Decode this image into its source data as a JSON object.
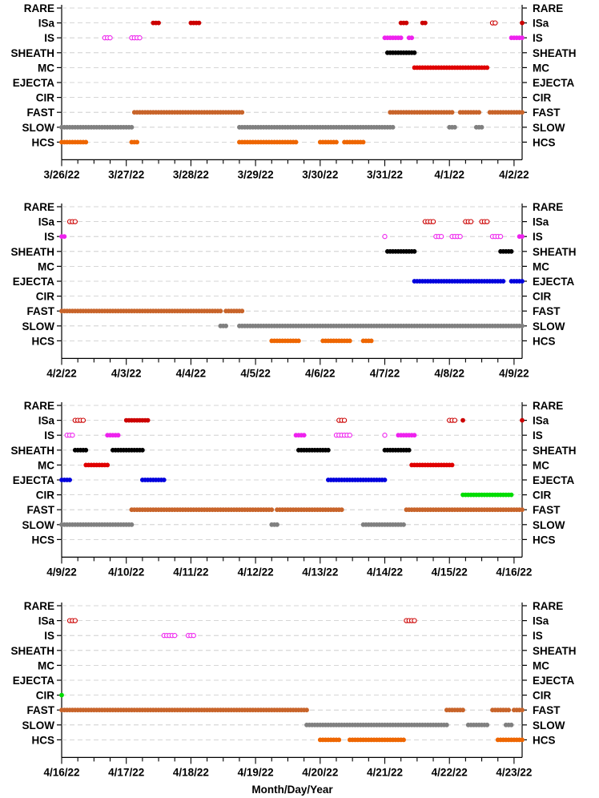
{
  "chart_data": {
    "type": "scatter",
    "x_axis_label": "Month/Day/Year",
    "categories": [
      "RARE",
      "ISa",
      "IS",
      "SHEATH",
      "MC",
      "EJECTA",
      "CIR",
      "FAST",
      "SLOW",
      "HCS"
    ],
    "colors": {
      "RARE": "#000000",
      "ISa": "#cc0000",
      "IS": "#ee22ee",
      "SHEATH": "#000000",
      "MC": "#e00000",
      "EJECTA": "#0000dd",
      "CIR": "#00dd00",
      "FAST": "#c8642a",
      "SLOW": "#808080",
      "HCS": "#ee6600"
    },
    "grid": "dashed horizontal",
    "panels": [
      {
        "x_range": [
          "2022-03-26",
          "2022-04-02 03:00"
        ],
        "tick_labels": [
          "3/26/22",
          "3/27/22",
          "3/28/22",
          "3/29/22",
          "3/30/22",
          "3/31/22",
          "4/1/22",
          "4/2/22"
        ],
        "intervals": [
          {
            "category": "ISa",
            "start": "2022-03-27 10:00",
            "end": "2022-03-27 12:00",
            "filled": true
          },
          {
            "category": "ISa",
            "start": "2022-03-28 00:00",
            "end": "2022-03-28 03:00",
            "filled": true
          },
          {
            "category": "ISa",
            "start": "2022-03-31 06:00",
            "end": "2022-03-31 08:00",
            "filled": true
          },
          {
            "category": "ISa",
            "start": "2022-03-31 14:00",
            "end": "2022-03-31 15:00",
            "filled": true
          },
          {
            "category": "ISa",
            "start": "2022-04-01 16:00",
            "end": "2022-04-01 17:00",
            "filled": false
          },
          {
            "category": "ISa",
            "start": "2022-04-02 03:00",
            "end": "2022-04-02 03:00",
            "filled": true
          },
          {
            "category": "IS",
            "start": "2022-03-26 16:00",
            "end": "2022-03-26 18:00",
            "filled": false
          },
          {
            "category": "IS",
            "start": "2022-03-27 02:00",
            "end": "2022-03-27 05:00",
            "filled": false
          },
          {
            "category": "IS",
            "start": "2022-03-31 00:00",
            "end": "2022-03-31 06:00",
            "filled": true
          },
          {
            "category": "IS",
            "start": "2022-03-31 09:00",
            "end": "2022-03-31 10:00",
            "filled": true
          },
          {
            "category": "IS",
            "start": "2022-04-01 23:00",
            "end": "2022-04-02 03:00",
            "filled": true
          },
          {
            "category": "SHEATH",
            "start": "2022-03-31 01:00",
            "end": "2022-03-31 11:00",
            "filled": true
          },
          {
            "category": "MC",
            "start": "2022-03-31 11:00",
            "end": "2022-04-01 14:00",
            "filled": true
          },
          {
            "category": "FAST",
            "start": "2022-03-27 03:00",
            "end": "2022-03-28 19:00",
            "filled": true
          },
          {
            "category": "FAST",
            "start": "2022-03-31 02:00",
            "end": "2022-04-01 01:00",
            "filled": true
          },
          {
            "category": "FAST",
            "start": "2022-04-01 04:00",
            "end": "2022-04-01 11:00",
            "filled": true
          },
          {
            "category": "FAST",
            "start": "2022-04-01 15:00",
            "end": "2022-04-02 03:00",
            "filled": true
          },
          {
            "category": "SLOW",
            "start": "2022-03-26 00:00",
            "end": "2022-03-27 02:00",
            "filled": true
          },
          {
            "category": "SLOW",
            "start": "2022-03-28 18:00",
            "end": "2022-03-31 03:00",
            "filled": true
          },
          {
            "category": "SLOW",
            "start": "2022-04-01 00:00",
            "end": "2022-04-01 02:00",
            "filled": true
          },
          {
            "category": "SLOW",
            "start": "2022-04-01 10:00",
            "end": "2022-04-01 12:00",
            "filled": true
          },
          {
            "category": "HCS",
            "start": "2022-03-26 00:00",
            "end": "2022-03-26 09:00",
            "filled": true
          },
          {
            "category": "HCS",
            "start": "2022-03-27 02:00",
            "end": "2022-03-27 04:00",
            "filled": true
          },
          {
            "category": "HCS",
            "start": "2022-03-28 18:00",
            "end": "2022-03-29 15:00",
            "filled": true
          },
          {
            "category": "HCS",
            "start": "2022-03-30 00:00",
            "end": "2022-03-30 06:00",
            "filled": true
          },
          {
            "category": "HCS",
            "start": "2022-03-30 09:00",
            "end": "2022-03-30 16:00",
            "filled": true
          }
        ]
      },
      {
        "x_range": [
          "2022-04-02",
          "2022-04-09 03:00"
        ],
        "tick_labels": [
          "4/2/22",
          "4/3/22",
          "4/4/22",
          "4/5/22",
          "4/6/22",
          "4/7/22",
          "4/8/22",
          "4/9/22"
        ],
        "intervals": [
          {
            "category": "ISa",
            "start": "2022-04-02 03:00",
            "end": "2022-04-02 05:00",
            "filled": false
          },
          {
            "category": "ISa",
            "start": "2022-04-07 15:00",
            "end": "2022-04-07 18:00",
            "filled": false
          },
          {
            "category": "ISa",
            "start": "2022-04-08 06:00",
            "end": "2022-04-08 08:00",
            "filled": false
          },
          {
            "category": "ISa",
            "start": "2022-04-08 12:00",
            "end": "2022-04-08 14:00",
            "filled": false
          },
          {
            "category": "IS",
            "start": "2022-04-02 00:00",
            "end": "2022-04-02 01:00",
            "filled": true
          },
          {
            "category": "IS",
            "start": "2022-04-07 00:00",
            "end": "2022-04-07 00:00",
            "filled": false
          },
          {
            "category": "IS",
            "start": "2022-04-07 19:00",
            "end": "2022-04-07 21:00",
            "filled": false
          },
          {
            "category": "IS",
            "start": "2022-04-08 01:00",
            "end": "2022-04-08 04:00",
            "filled": false
          },
          {
            "category": "IS",
            "start": "2022-04-08 16:00",
            "end": "2022-04-08 19:00",
            "filled": false
          },
          {
            "category": "IS",
            "start": "2022-04-09 02:00",
            "end": "2022-04-09 03:00",
            "filled": true
          },
          {
            "category": "SHEATH",
            "start": "2022-04-07 01:00",
            "end": "2022-04-07 11:00",
            "filled": true
          },
          {
            "category": "SHEATH",
            "start": "2022-04-08 19:00",
            "end": "2022-04-08 23:00",
            "filled": true
          },
          {
            "category": "EJECTA",
            "start": "2022-04-07 11:00",
            "end": "2022-04-08 20:00",
            "filled": true
          },
          {
            "category": "EJECTA",
            "start": "2022-04-08 23:00",
            "end": "2022-04-09 03:00",
            "filled": true
          },
          {
            "category": "FAST",
            "start": "2022-04-02 00:00",
            "end": "2022-04-04 11:00",
            "filled": true
          },
          {
            "category": "FAST",
            "start": "2022-04-04 13:00",
            "end": "2022-04-04 19:00",
            "filled": true
          },
          {
            "category": "SLOW",
            "start": "2022-04-04 11:00",
            "end": "2022-04-04 13:00",
            "filled": true
          },
          {
            "category": "SLOW",
            "start": "2022-04-04 18:00",
            "end": "2022-04-09 03:00",
            "filled": true
          },
          {
            "category": "HCS",
            "start": "2022-04-05 06:00",
            "end": "2022-04-05 16:00",
            "filled": true
          },
          {
            "category": "HCS",
            "start": "2022-04-06 01:00",
            "end": "2022-04-06 11:00",
            "filled": true
          },
          {
            "category": "HCS",
            "start": "2022-04-06 16:00",
            "end": "2022-04-06 19:00",
            "filled": true
          }
        ]
      },
      {
        "x_range": [
          "2022-04-09",
          "2022-04-16 03:00"
        ],
        "tick_labels": [
          "4/9/22",
          "4/10/22",
          "4/11/22",
          "4/12/22",
          "4/13/22",
          "4/14/22",
          "4/15/22",
          "4/16/22"
        ],
        "intervals": [
          {
            "category": "ISa",
            "start": "2022-04-09 05:00",
            "end": "2022-04-09 08:00",
            "filled": false
          },
          {
            "category": "ISa",
            "start": "2022-04-10 00:00",
            "end": "2022-04-10 08:00",
            "filled": true
          },
          {
            "category": "ISa",
            "start": "2022-04-13 07:00",
            "end": "2022-04-13 09:00",
            "filled": false
          },
          {
            "category": "ISa",
            "start": "2022-04-15 00:00",
            "end": "2022-04-15 02:00",
            "filled": false
          },
          {
            "category": "ISa",
            "start": "2022-04-15 05:00",
            "end": "2022-04-15 05:00",
            "filled": true
          },
          {
            "category": "ISa",
            "start": "2022-04-16 03:00",
            "end": "2022-04-16 03:00",
            "filled": true
          },
          {
            "category": "IS",
            "start": "2022-04-09 02:00",
            "end": "2022-04-09 04:00",
            "filled": false
          },
          {
            "category": "IS",
            "start": "2022-04-09 17:00",
            "end": "2022-04-09 21:00",
            "filled": true
          },
          {
            "category": "IS",
            "start": "2022-04-12 15:00",
            "end": "2022-04-12 18:00",
            "filled": true
          },
          {
            "category": "IS",
            "start": "2022-04-13 06:00",
            "end": "2022-04-13 11:00",
            "filled": false
          },
          {
            "category": "IS",
            "start": "2022-04-14 00:00",
            "end": "2022-04-14 00:00",
            "filled": false
          },
          {
            "category": "IS",
            "start": "2022-04-14 05:00",
            "end": "2022-04-14 11:00",
            "filled": true
          },
          {
            "category": "SHEATH",
            "start": "2022-04-09 05:00",
            "end": "2022-04-09 09:00",
            "filled": true
          },
          {
            "category": "SHEATH",
            "start": "2022-04-09 19:00",
            "end": "2022-04-10 06:00",
            "filled": true
          },
          {
            "category": "SHEATH",
            "start": "2022-04-12 16:00",
            "end": "2022-04-13 03:00",
            "filled": true
          },
          {
            "category": "SHEATH",
            "start": "2022-04-14 00:00",
            "end": "2022-04-14 09:00",
            "filled": true
          },
          {
            "category": "MC",
            "start": "2022-04-09 09:00",
            "end": "2022-04-09 17:00",
            "filled": true
          },
          {
            "category": "MC",
            "start": "2022-04-14 10:00",
            "end": "2022-04-15 01:00",
            "filled": true
          },
          {
            "category": "EJECTA",
            "start": "2022-04-09 00:00",
            "end": "2022-04-09 03:00",
            "filled": true
          },
          {
            "category": "EJECTA",
            "start": "2022-04-10 06:00",
            "end": "2022-04-10 14:00",
            "filled": true
          },
          {
            "category": "EJECTA",
            "start": "2022-04-13 03:00",
            "end": "2022-04-14 00:00",
            "filled": true
          },
          {
            "category": "CIR",
            "start": "2022-04-15 05:00",
            "end": "2022-04-15 23:00",
            "filled": true
          },
          {
            "category": "FAST",
            "start": "2022-04-10 02:00",
            "end": "2022-04-12 06:00",
            "filled": true
          },
          {
            "category": "FAST",
            "start": "2022-04-12 08:00",
            "end": "2022-04-13 08:00",
            "filled": true
          },
          {
            "category": "FAST",
            "start": "2022-04-14 08:00",
            "end": "2022-04-16 03:00",
            "filled": true
          },
          {
            "category": "SLOW",
            "start": "2022-04-09 00:00",
            "end": "2022-04-10 02:00",
            "filled": true
          },
          {
            "category": "SLOW",
            "start": "2022-04-12 06:00",
            "end": "2022-04-12 08:00",
            "filled": true
          },
          {
            "category": "SLOW",
            "start": "2022-04-13 16:00",
            "end": "2022-04-14 07:00",
            "filled": true
          }
        ]
      },
      {
        "x_range": [
          "2022-04-16",
          "2022-04-23 03:00"
        ],
        "tick_labels": [
          "4/16/22",
          "4/17/22",
          "4/18/22",
          "4/19/22",
          "4/20/22",
          "4/21/22",
          "4/22/22",
          "4/23/22"
        ],
        "intervals": [
          {
            "category": "ISa",
            "start": "2022-04-16 03:00",
            "end": "2022-04-16 05:00",
            "filled": false
          },
          {
            "category": "ISa",
            "start": "2022-04-21 08:00",
            "end": "2022-04-21 11:00",
            "filled": false
          },
          {
            "category": "IS",
            "start": "2022-04-17 14:00",
            "end": "2022-04-17 18:00",
            "filled": false
          },
          {
            "category": "IS",
            "start": "2022-04-17 23:00",
            "end": "2022-04-18 01:00",
            "filled": false
          },
          {
            "category": "CIR",
            "start": "2022-04-16 00:00",
            "end": "2022-04-16 00:00",
            "filled": true
          },
          {
            "category": "FAST",
            "start": "2022-04-16 00:00",
            "end": "2022-04-19 19:00",
            "filled": true
          },
          {
            "category": "FAST",
            "start": "2022-04-21 23:00",
            "end": "2022-04-22 05:00",
            "filled": true
          },
          {
            "category": "FAST",
            "start": "2022-04-22 16:00",
            "end": "2022-04-22 22:00",
            "filled": true
          },
          {
            "category": "FAST",
            "start": "2022-04-23 00:00",
            "end": "2022-04-23 03:00",
            "filled": true
          },
          {
            "category": "SLOW",
            "start": "2022-04-19 19:00",
            "end": "2022-04-21 23:00",
            "filled": true
          },
          {
            "category": "SLOW",
            "start": "2022-04-22 07:00",
            "end": "2022-04-22 14:00",
            "filled": true
          },
          {
            "category": "SLOW",
            "start": "2022-04-22 21:00",
            "end": "2022-04-22 23:00",
            "filled": true
          },
          {
            "category": "HCS",
            "start": "2022-04-20 00:00",
            "end": "2022-04-20 07:00",
            "filled": true
          },
          {
            "category": "HCS",
            "start": "2022-04-20 11:00",
            "end": "2022-04-21 07:00",
            "filled": true
          },
          {
            "category": "HCS",
            "start": "2022-04-22 18:00",
            "end": "2022-04-23 03:00",
            "filled": true
          }
        ]
      }
    ]
  }
}
